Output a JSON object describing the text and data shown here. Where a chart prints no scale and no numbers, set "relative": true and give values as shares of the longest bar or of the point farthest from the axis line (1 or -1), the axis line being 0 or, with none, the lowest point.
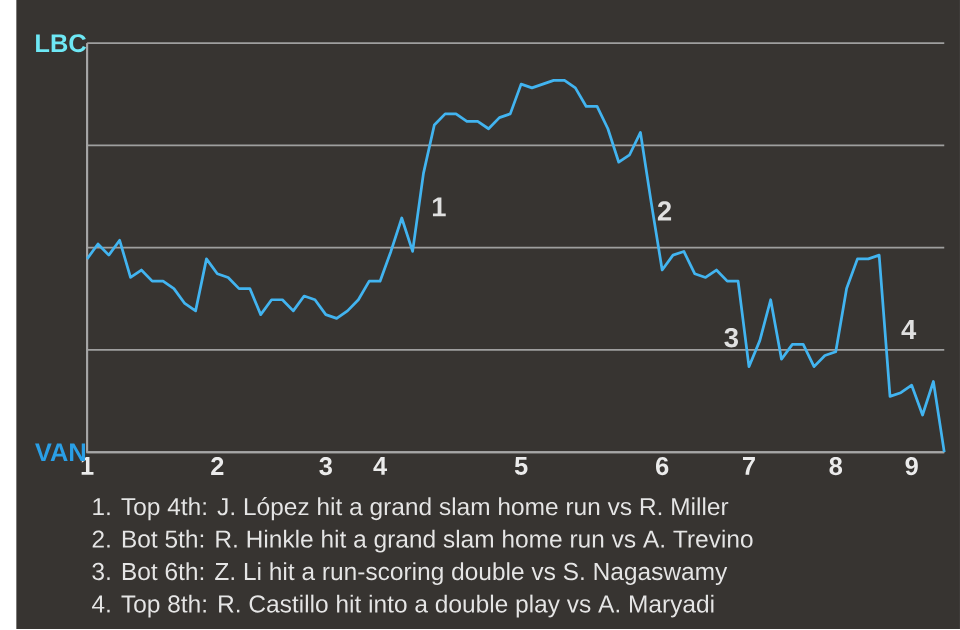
{
  "chart_data": {
    "type": "line",
    "relative": true,
    "categories": [
      "1",
      null,
      null,
      null,
      null,
      null,
      null,
      null,
      null,
      null,
      null,
      null,
      "2",
      null,
      null,
      null,
      null,
      null,
      null,
      null,
      null,
      null,
      "3",
      null,
      null,
      null,
      null,
      "4",
      null,
      null,
      null,
      null,
      null,
      null,
      null,
      null,
      null,
      null,
      null,
      null,
      "5",
      null,
      null,
      null,
      null,
      null,
      null,
      null,
      null,
      null,
      null,
      null,
      null,
      "6",
      null,
      null,
      null,
      null,
      null,
      null,
      null,
      "7",
      null,
      null,
      null,
      null,
      null,
      null,
      null,
      "8",
      null,
      null,
      null,
      null,
      null,
      null,
      "9",
      null,
      null,
      null
    ],
    "series": [
      {
        "color": "#42b4f0",
        "values": [
          0.52,
          0.56,
          0.53,
          0.57,
          0.47,
          0.49,
          0.46,
          0.46,
          0.44,
          0.4,
          0.38,
          0.52,
          0.48,
          0.47,
          0.44,
          0.44,
          0.37,
          0.41,
          0.41,
          0.38,
          0.42,
          0.41,
          0.37,
          0.36,
          0.38,
          0.41,
          0.46,
          0.46,
          0.54,
          0.63,
          0.54,
          0.75,
          0.88,
          0.91,
          0.91,
          0.89,
          0.89,
          0.87,
          0.9,
          0.91,
          0.99,
          0.98,
          0.99,
          1,
          1,
          0.98,
          0.93,
          0.93,
          0.87,
          0.78,
          0.8,
          0.86,
          0.67,
          0.49,
          0.53,
          0.54,
          0.48,
          0.47,
          0.49,
          0.46,
          0.46,
          0.23,
          0.3,
          0.41,
          0.25,
          0.29,
          0.29,
          0.23,
          0.26,
          0.27,
          0.44,
          0.52,
          0.52,
          0.53,
          0.15,
          0.16,
          0.18,
          0.1,
          0.19,
          0
        ]
      }
    ],
    "grid": "y",
    "annotations": [
      "LBC",
      "VAN",
      "1",
      "2",
      "3",
      "4",
      "1. Top 4th: J. López hit a grand slam home run vs R. Miller",
      "2. Bot 5th: R. Hinkle hit a grand slam home run vs A. Trevino",
      "3. Bot 6th: Z. Li hit a run-scoring double vs S. Nagaswamy",
      "4. Top 8th: R. Castillo hit into a double play vs A. Maryadi"
    ]
  }
}
